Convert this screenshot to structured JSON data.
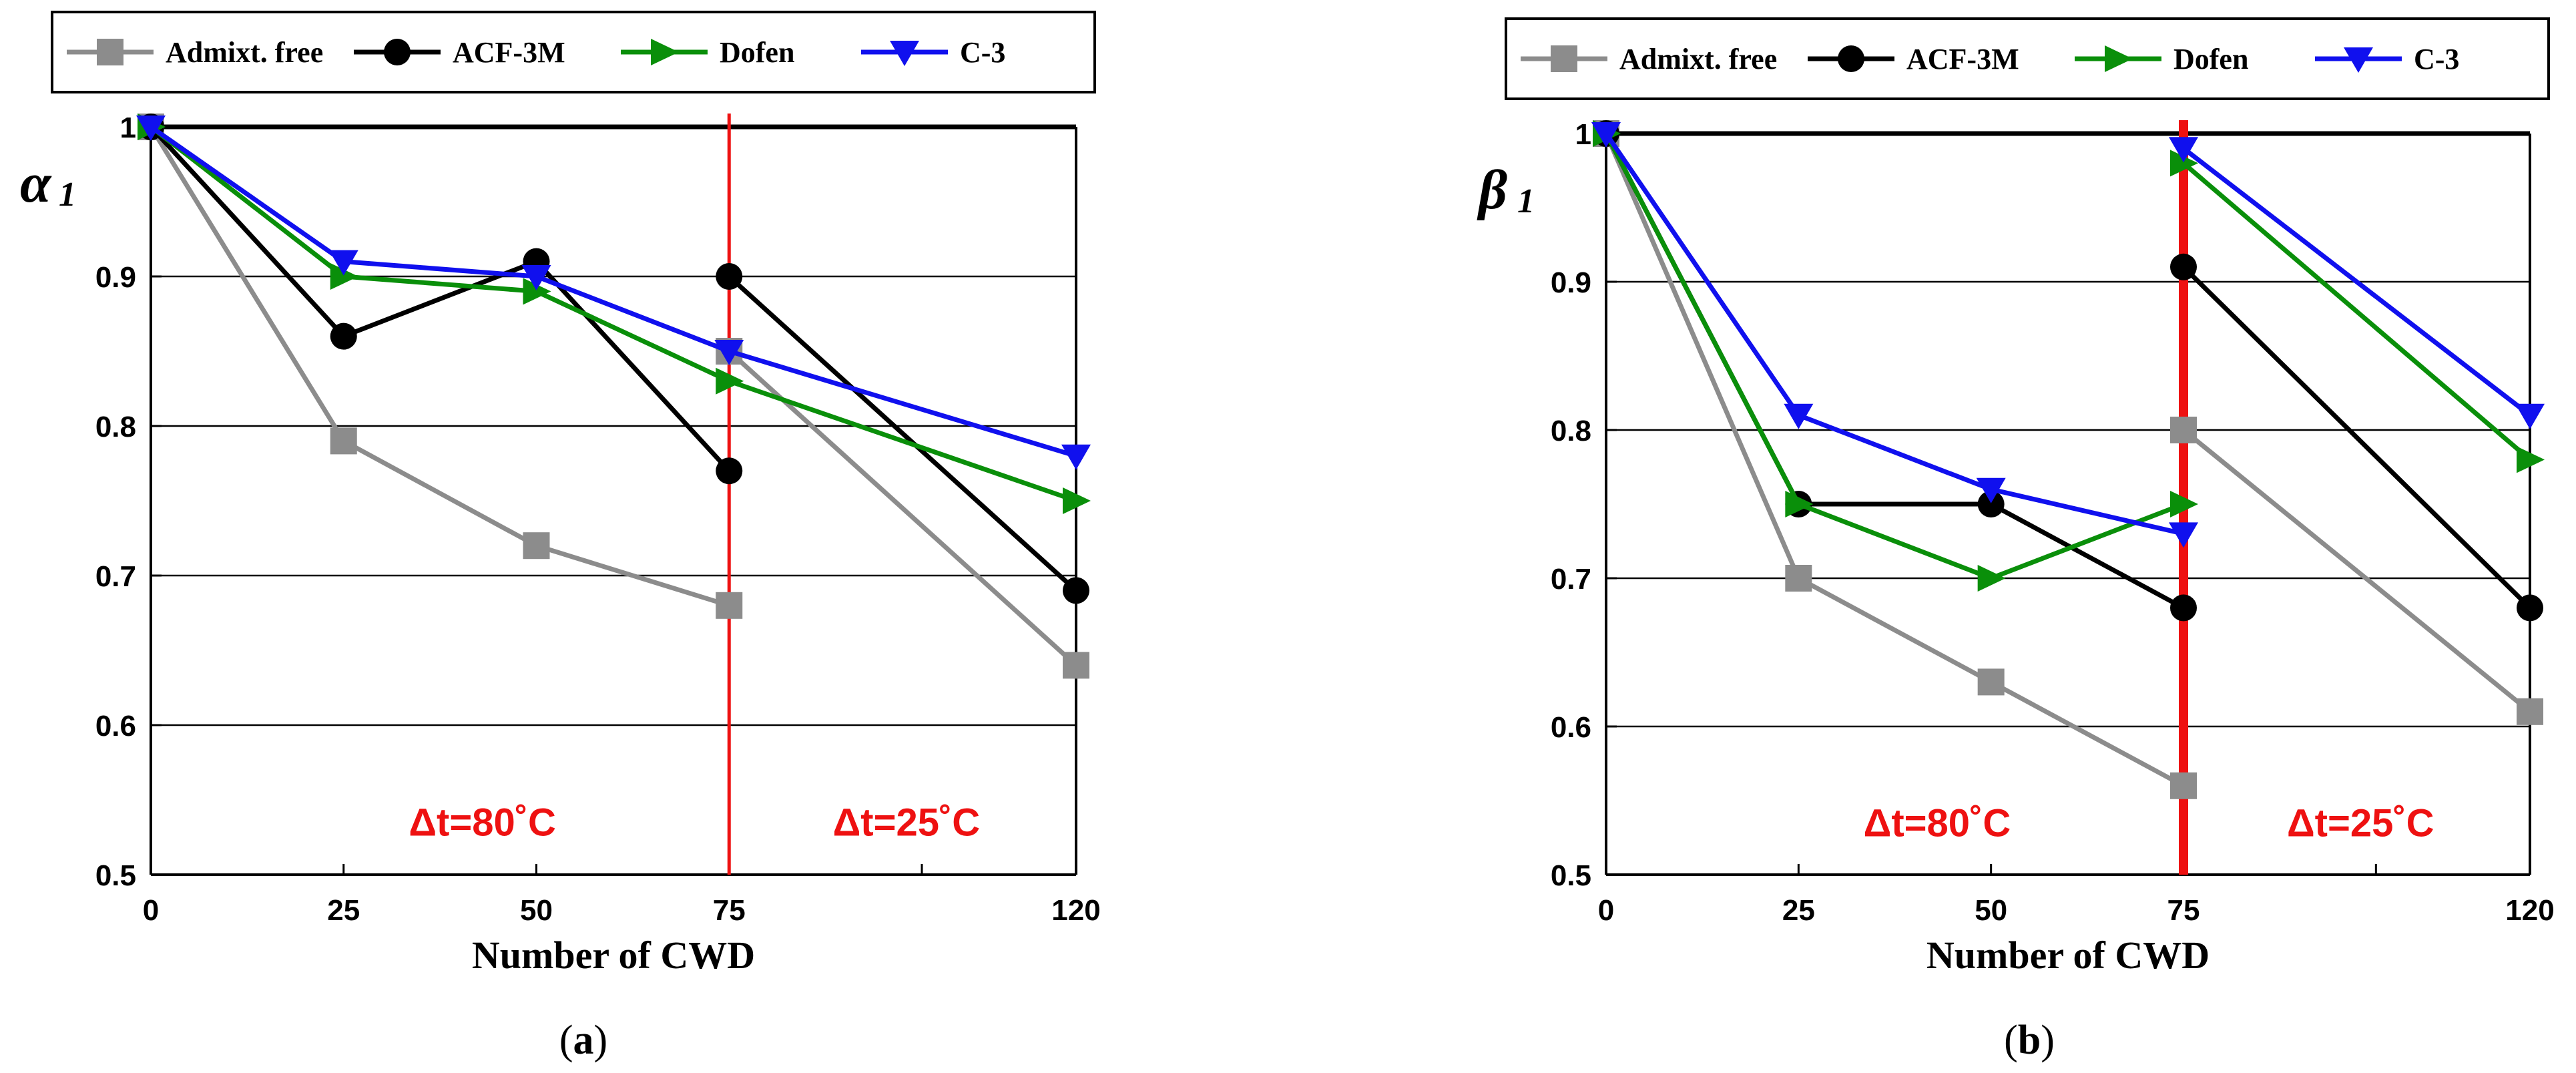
{
  "chart_data": [
    {
      "type": "line",
      "panel_id": "a",
      "caption": "(a)",
      "caption_letter": "a",
      "ylabel_main": "α",
      "ylabel_sub": "1",
      "xlabel": "Number of CWD",
      "xticks": [
        0,
        25,
        50,
        75,
        120
      ],
      "yticks": [
        0.5,
        0.6,
        0.7,
        0.8,
        0.9,
        1
      ],
      "ytick_labels": [
        "0.5",
        "0.6",
        "0.7",
        "0.8",
        "0.9",
        "1"
      ],
      "xtick_labels": [
        "0",
        "25",
        "50",
        "75",
        "120"
      ],
      "xlim": [
        0,
        120
      ],
      "ylim": [
        0.5,
        1
      ],
      "grid": true,
      "reference_line": 1,
      "divider_x": 75,
      "divider_style": "thin",
      "annotations": [
        {
          "text": "Δt=80˚C",
          "x": 43,
          "y": 0.535
        },
        {
          "text": "Δt=25˚C",
          "x": 98,
          "y": 0.535
        }
      ],
      "series": [
        {
          "name": "Admixt. free",
          "color": "#8c8c8c",
          "marker": "square",
          "segments": [
            [
              [
                0,
                1
              ],
              [
                25,
                0.79
              ],
              [
                50,
                0.72
              ],
              [
                75,
                0.68
              ]
            ],
            [
              [
                75,
                0.85
              ],
              [
                120,
                0.64
              ]
            ]
          ]
        },
        {
          "name": "ACF-3M",
          "color": "#000000",
          "marker": "circle",
          "segments": [
            [
              [
                0,
                1
              ],
              [
                25,
                0.86
              ],
              [
                50,
                0.91
              ],
              [
                75,
                0.77
              ]
            ],
            [
              [
                75,
                0.9
              ],
              [
                120,
                0.69
              ]
            ]
          ]
        },
        {
          "name": "Dofen",
          "color": "#0a8f0a",
          "marker": "triangle-right",
          "segments": [
            [
              [
                0,
                1
              ],
              [
                25,
                0.9
              ],
              [
                50,
                0.89
              ],
              [
                75,
                0.83
              ],
              [
                120,
                0.75
              ]
            ]
          ]
        },
        {
          "name": "C-3",
          "color": "#1010ee",
          "marker": "triangle-down",
          "segments": [
            [
              [
                0,
                1
              ],
              [
                25,
                0.91
              ],
              [
                50,
                0.9
              ],
              [
                75,
                0.85
              ],
              [
                120,
                0.78
              ]
            ]
          ]
        }
      ]
    },
    {
      "type": "line",
      "panel_id": "b",
      "caption": "(b)",
      "caption_letter": "b",
      "ylabel_main": "β",
      "ylabel_sub": "1",
      "xlabel": "Number of CWD",
      "xticks": [
        0,
        25,
        50,
        75,
        120
      ],
      "yticks": [
        0.5,
        0.6,
        0.7,
        0.8,
        0.9,
        1
      ],
      "ytick_labels": [
        "0.5",
        "0.6",
        "0.7",
        "0.8",
        "0.9",
        "1"
      ],
      "xtick_labels": [
        "0",
        "25",
        "50",
        "75",
        "120"
      ],
      "xlim": [
        0,
        120
      ],
      "ylim": [
        0.5,
        1
      ],
      "grid": true,
      "reference_line": 1,
      "divider_x": 75,
      "divider_style": "thick",
      "annotations": [
        {
          "text": "Δt=80˚C",
          "x": 43,
          "y": 0.535
        },
        {
          "text": "Δt=25˚C",
          "x": 98,
          "y": 0.535
        }
      ],
      "series": [
        {
          "name": "Admixt. free",
          "color": "#8c8c8c",
          "marker": "square",
          "segments": [
            [
              [
                0,
                1
              ],
              [
                25,
                0.7
              ],
              [
                50,
                0.63
              ],
              [
                75,
                0.56
              ]
            ],
            [
              [
                75,
                0.8
              ],
              [
                120,
                0.61
              ]
            ]
          ]
        },
        {
          "name": "ACF-3M",
          "color": "#000000",
          "marker": "circle",
          "segments": [
            [
              [
                0,
                1
              ],
              [
                25,
                0.75
              ],
              [
                50,
                0.75
              ],
              [
                75,
                0.68
              ]
            ],
            [
              [
                75,
                0.91
              ],
              [
                120,
                0.68
              ]
            ]
          ]
        },
        {
          "name": "Dofen",
          "color": "#0a8f0a",
          "marker": "triangle-right",
          "segments": [
            [
              [
                0,
                1
              ],
              [
                25,
                0.75
              ],
              [
                50,
                0.7
              ],
              [
                75,
                0.75
              ]
            ],
            [
              [
                75,
                0.98
              ],
              [
                120,
                0.78
              ]
            ]
          ]
        },
        {
          "name": "C-3",
          "color": "#1010ee",
          "marker": "triangle-down",
          "segments": [
            [
              [
                0,
                1
              ],
              [
                25,
                0.81
              ],
              [
                50,
                0.76
              ],
              [
                75,
                0.73
              ]
            ],
            [
              [
                75,
                0.99
              ],
              [
                120,
                0.81
              ]
            ]
          ]
        }
      ]
    }
  ]
}
